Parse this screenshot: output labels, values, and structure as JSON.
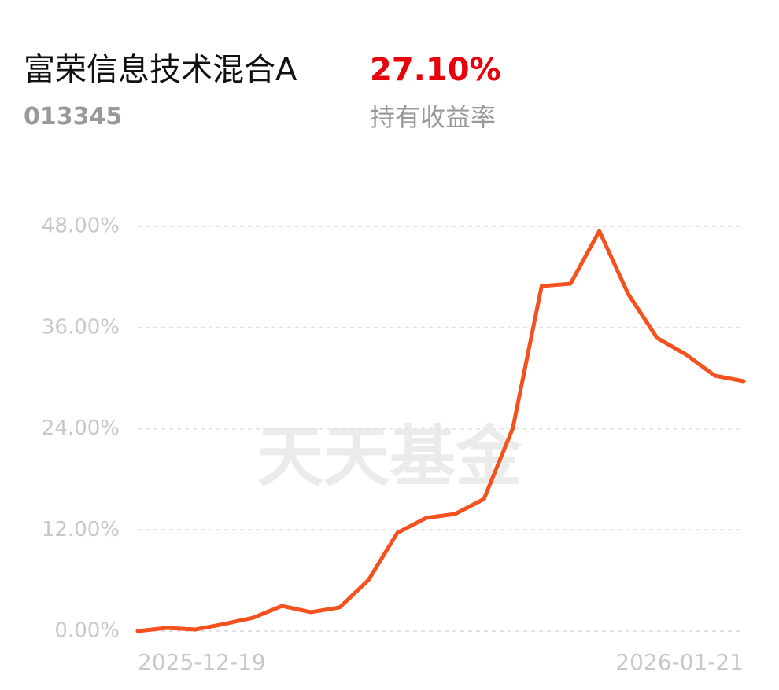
{
  "header": {
    "name": "富荣信息技术混合A",
    "code": "013345",
    "return": "27.10%",
    "return_caption": "持有收益率"
  },
  "chart_data": {
    "type": "line",
    "watermark": "天天基金",
    "categories": [
      "2025-12-19",
      null,
      null,
      null,
      null,
      null,
      null,
      null,
      null,
      null,
      null,
      null,
      null,
      null,
      null,
      null,
      null,
      null,
      null,
      null,
      null,
      "2026-01-21"
    ],
    "series": [
      {
        "color": "#f4511e",
        "values": [
          0,
          0.37,
          0.19,
          0.84,
          1.58,
          2.98,
          2.24,
          2.8,
          6.06,
          11.65,
          13.42,
          13.89,
          15.66,
          24.04,
          40.91,
          41.19,
          47.44,
          39.98,
          34.76,
          32.81,
          30.29,
          29.64
        ]
      }
    ],
    "ylim": [
      0,
      48
    ],
    "yticks": [
      {
        "value": 0,
        "label": "0.00%"
      },
      {
        "value": 12,
        "label": "12.00%"
      },
      {
        "value": 24,
        "label": "24.00%"
      },
      {
        "value": 36,
        "label": "36.00%"
      },
      {
        "value": 48,
        "label": "48.00%"
      }
    ],
    "grid": true
  }
}
